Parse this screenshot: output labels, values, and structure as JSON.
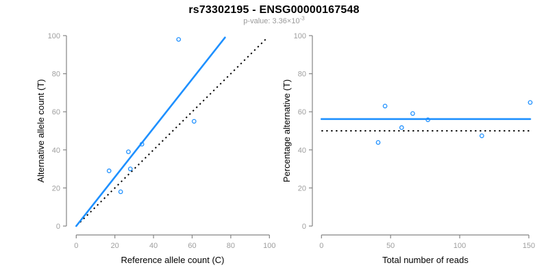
{
  "colors": {
    "accent_blue": "#1E90FF",
    "reference_black": "#000000",
    "axis_line_gray": "#848484",
    "tick_label_gray": "#9e9e9e",
    "subtitle_gray": "#9a9a9a",
    "title_black": "#000000",
    "background": "#ffffff"
  },
  "chart_data": {
    "title": "rs73302195 - ENSG00000167548",
    "subtitle": "p-value: 3.36×10⁻³",
    "subtitle_mantissa": "p-value: 3.36×10",
    "subtitle_exponent": "-3",
    "panels": [
      {
        "type": "scatter",
        "xlabel": "Reference allele count (C)",
        "ylabel": "Alternative allele count (T)",
        "xlim": [
          0,
          100
        ],
        "ylim": [
          0,
          100
        ],
        "xticks": [
          0,
          20,
          40,
          60,
          80,
          100
        ],
        "yticks": [
          0,
          20,
          40,
          60,
          80,
          100
        ],
        "grid": false,
        "points": [
          [
            17,
            29
          ],
          [
            23,
            18
          ],
          [
            27,
            39
          ],
          [
            28,
            30
          ],
          [
            34,
            43
          ],
          [
            53,
            98
          ],
          [
            61,
            55
          ]
        ],
        "fit_line": {
          "style": "solid",
          "color": "blue",
          "from": [
            0,
            0
          ],
          "to": [
            77,
            99
          ]
        },
        "identity_line": {
          "style": "dotted",
          "color": "black",
          "from": [
            2,
            2
          ],
          "to": [
            98,
            98
          ]
        }
      },
      {
        "type": "scatter",
        "xlabel": "Total number of reads",
        "ylabel": "Percentage alternative (T)",
        "xlim": [
          0,
          150
        ],
        "ylim": [
          0,
          100
        ],
        "xticks": [
          0,
          50,
          100,
          150
        ],
        "yticks": [
          0,
          20,
          40,
          60,
          80,
          100
        ],
        "grid": false,
        "points": [
          [
            46,
            63
          ],
          [
            41,
            43.9
          ],
          [
            66,
            59.1
          ],
          [
            58,
            51.7
          ],
          [
            77,
            55.8
          ],
          [
            116,
            47.4
          ],
          [
            151,
            64.9
          ]
        ],
        "fit_line": {
          "style": "solid",
          "color": "blue",
          "from": [
            0,
            56.2
          ],
          "to": [
            151,
            56.2
          ]
        },
        "identity_line": {
          "style": "dotted",
          "color": "black",
          "from": [
            0,
            50
          ],
          "to": [
            151,
            50
          ]
        }
      }
    ]
  }
}
